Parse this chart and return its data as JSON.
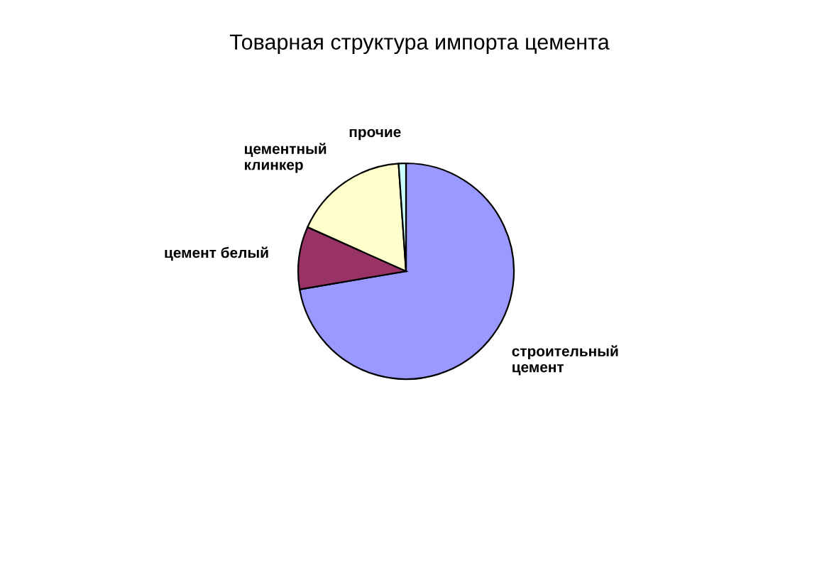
{
  "chart_data": {
    "type": "pie",
    "title": "Товарная структура импорта цемента",
    "categories": [
      "строительный\nцемент",
      "цемент белый",
      "цементный\nклинкер",
      "прочие"
    ],
    "values": [
      72.3,
      9.4,
      17.2,
      1.1
    ],
    "colors": [
      "#9999ff",
      "#993366",
      "#ffffcc",
      "#ccffff"
    ],
    "legend": false
  }
}
